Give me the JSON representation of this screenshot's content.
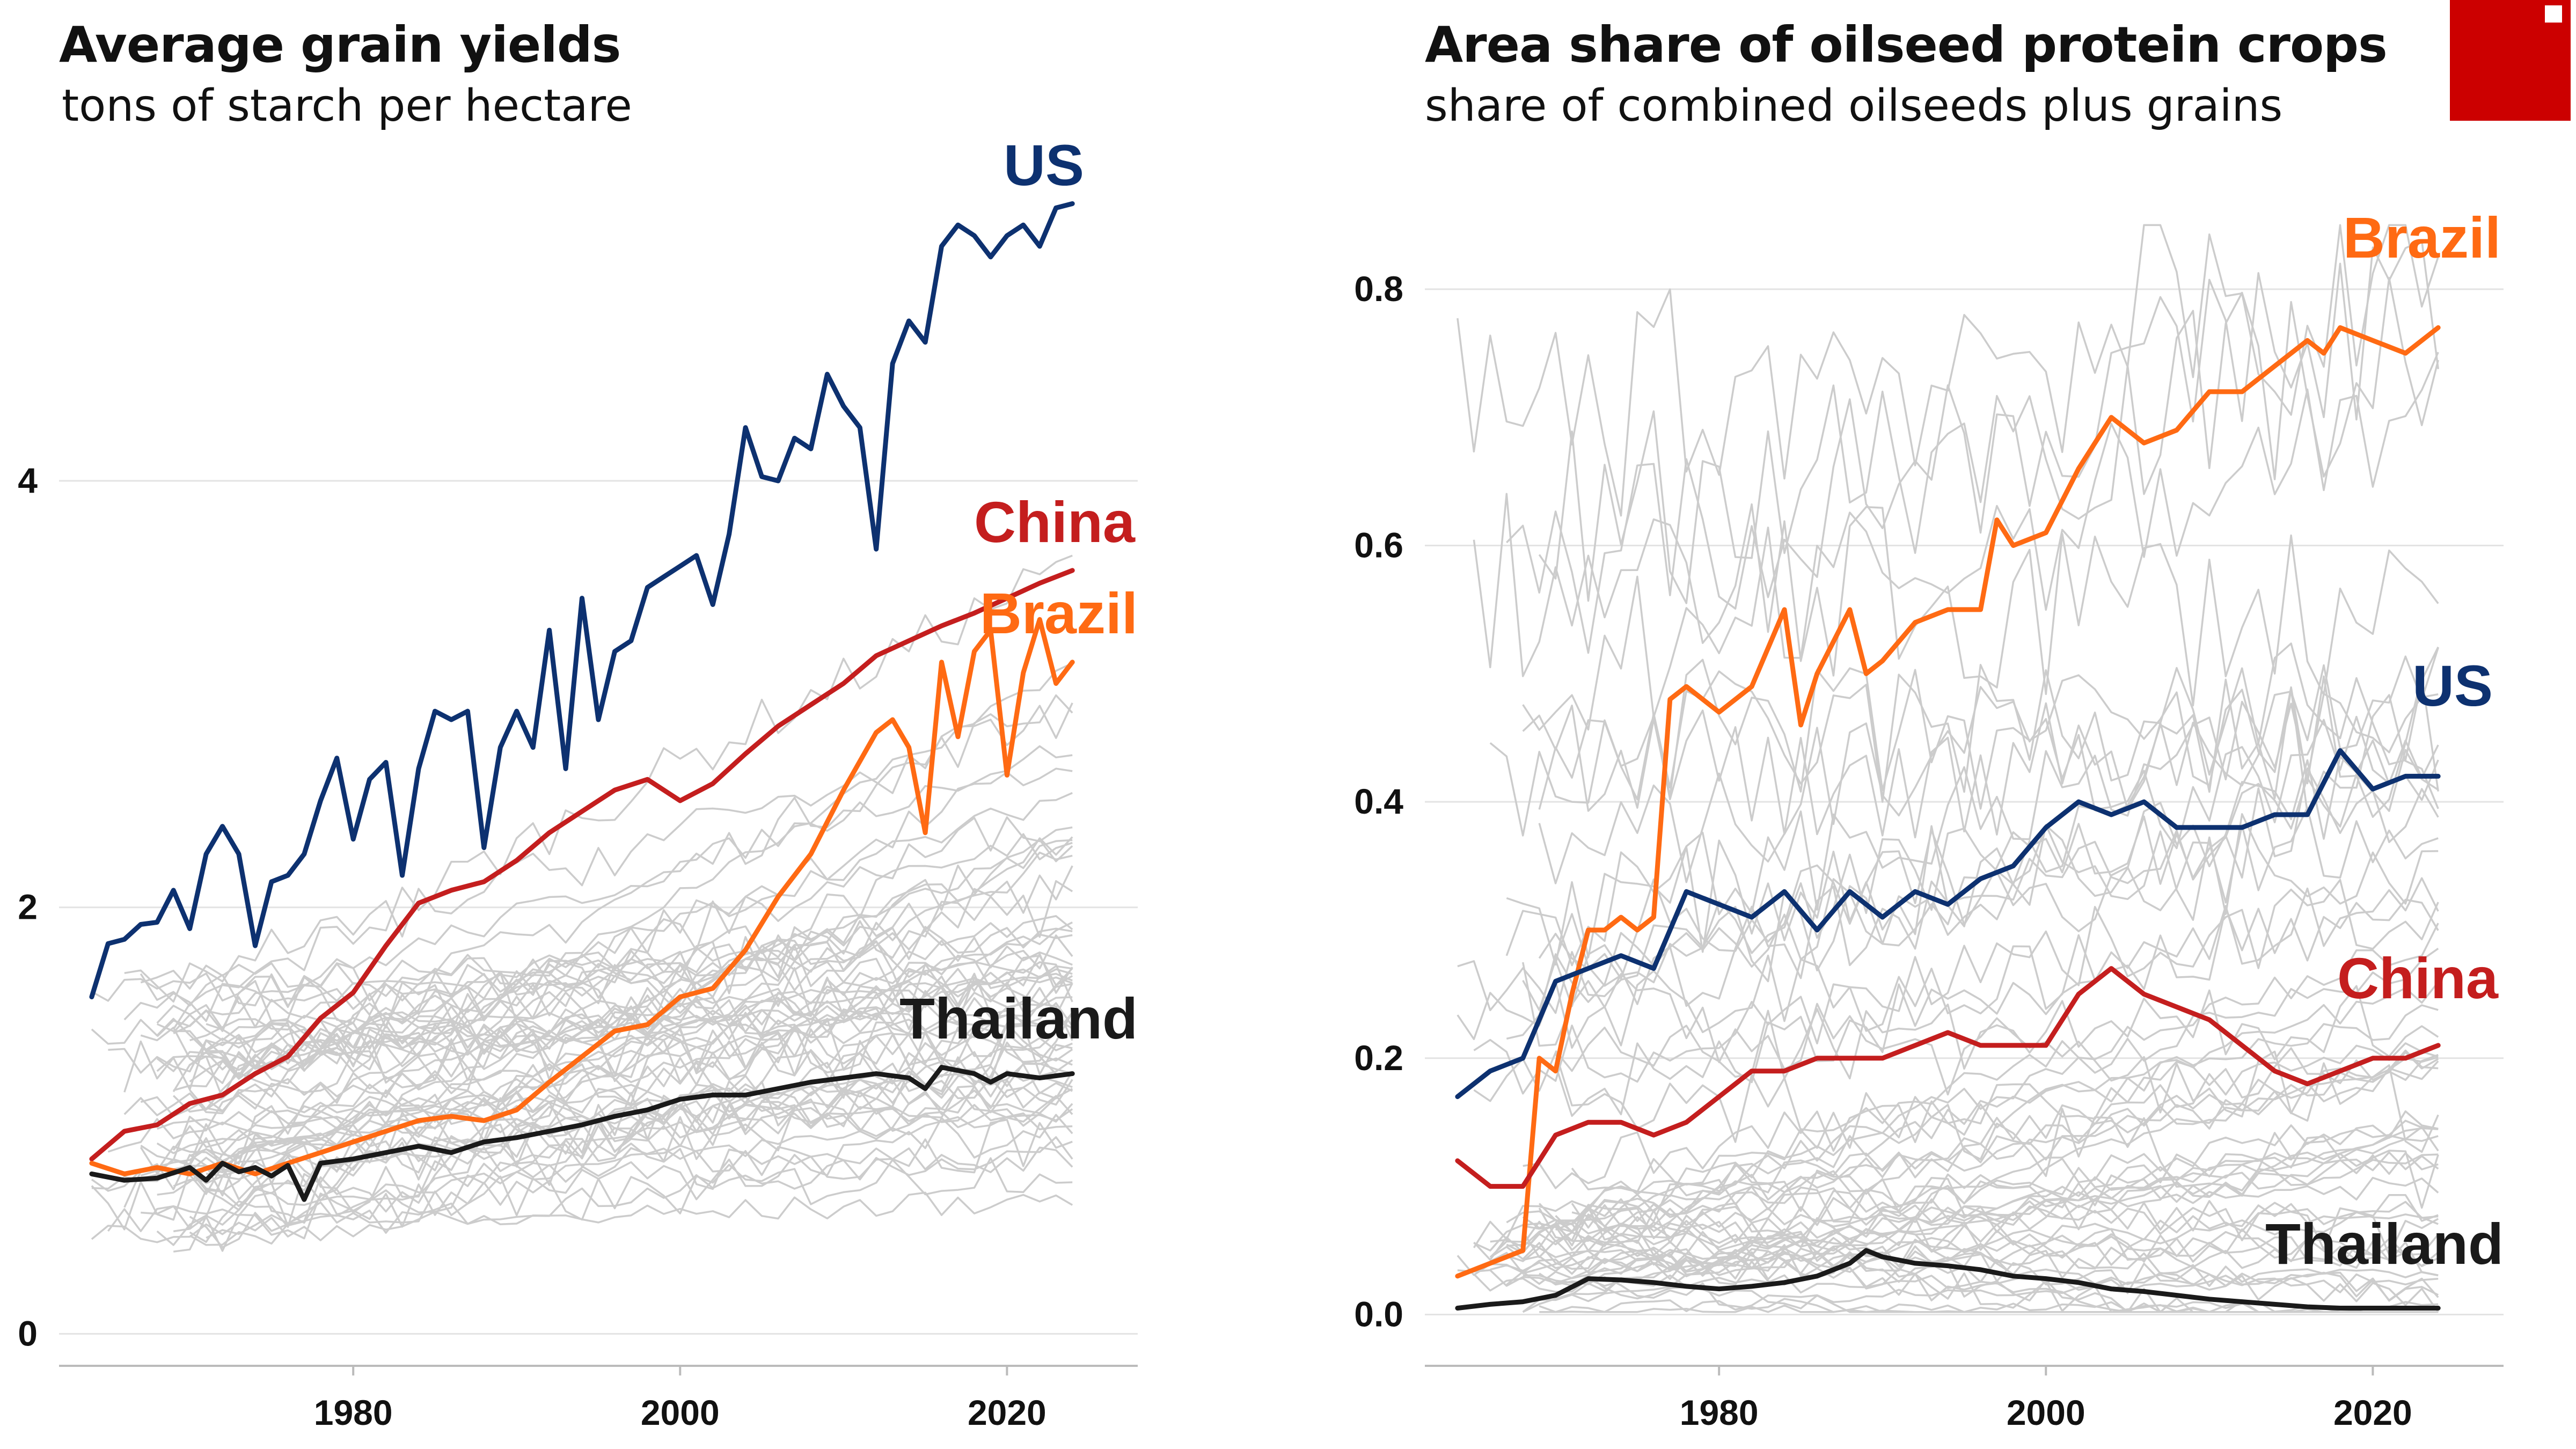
{
  "brand": {
    "color": "#cc0000",
    "icon": "brand-logo-icon"
  },
  "background_series_color": "#cccccc",
  "chart_data": [
    {
      "id": "yields",
      "type": "line",
      "title": "Average grain yields",
      "subtitle": "tons of starch per hectare",
      "xlabel": "",
      "ylabel": "",
      "xlim": [
        1962,
        2028
      ],
      "ylim": [
        -0.15,
        5.5
      ],
      "xticks": [
        1980,
        2000,
        2020
      ],
      "yticks": [
        0,
        2,
        4
      ],
      "ytick_labels": [
        "0",
        "2",
        "4"
      ],
      "grid": true,
      "background_note": "many light grey lines for other countries",
      "series": [
        {
          "name": "US",
          "color": "#0d3170",
          "x": [
            1964,
            1965,
            1966,
            1967,
            1968,
            1969,
            1970,
            1971,
            1972,
            1973,
            1974,
            1975,
            1976,
            1977,
            1978,
            1979,
            1980,
            1981,
            1982,
            1983,
            1984,
            1985,
            1986,
            1987,
            1988,
            1989,
            1990,
            1991,
            1992,
            1993,
            1994,
            1995,
            1996,
            1997,
            1998,
            1999,
            2000,
            2001,
            2002,
            2003,
            2004,
            2005,
            2006,
            2007,
            2008,
            2009,
            2010,
            2011,
            2012,
            2013,
            2014,
            2015,
            2016,
            2017,
            2018,
            2019,
            2020,
            2021,
            2022,
            2023,
            2024
          ],
          "values": [
            1.58,
            1.83,
            1.85,
            1.92,
            1.93,
            2.08,
            1.9,
            2.25,
            2.38,
            2.25,
            1.82,
            2.12,
            2.15,
            2.25,
            2.5,
            2.7,
            2.32,
            2.6,
            2.68,
            2.15,
            2.65,
            2.92,
            2.88,
            2.92,
            2.28,
            2.75,
            2.92,
            2.75,
            3.3,
            2.65,
            3.45,
            2.88,
            3.2,
            3.25,
            3.5,
            3.55,
            3.6,
            3.65,
            3.42,
            3.75,
            4.25,
            4.02,
            4.0,
            4.2,
            4.15,
            4.5,
            4.35,
            4.25,
            3.68,
            4.55,
            4.75,
            4.65,
            5.1,
            5.2,
            5.15,
            5.05,
            5.15,
            5.2,
            5.1,
            5.28,
            5.3
          ]
        },
        {
          "name": "China",
          "color": "#c41e1e",
          "x": [
            1964,
            1966,
            1968,
            1970,
            1972,
            1974,
            1976,
            1978,
            1980,
            1982,
            1984,
            1986,
            1988,
            1990,
            1992,
            1994,
            1996,
            1998,
            2000,
            2002,
            2004,
            2006,
            2008,
            2010,
            2012,
            2014,
            2016,
            2018,
            2020,
            2022,
            2024
          ],
          "values": [
            0.82,
            0.95,
            0.98,
            1.08,
            1.12,
            1.22,
            1.3,
            1.48,
            1.6,
            1.82,
            2.02,
            2.08,
            2.12,
            2.22,
            2.35,
            2.45,
            2.55,
            2.6,
            2.5,
            2.58,
            2.72,
            2.85,
            2.95,
            3.05,
            3.18,
            3.25,
            3.32,
            3.38,
            3.45,
            3.52,
            3.58
          ]
        },
        {
          "name": "Brazil",
          "color": "#ff6a13",
          "x": [
            1964,
            1966,
            1968,
            1970,
            1972,
            1974,
            1976,
            1978,
            1980,
            1982,
            1984,
            1986,
            1988,
            1990,
            1992,
            1994,
            1996,
            1998,
            2000,
            2002,
            2004,
            2006,
            2008,
            2010,
            2012,
            2013,
            2014,
            2015,
            2016,
            2017,
            2018,
            2019,
            2020,
            2021,
            2022,
            2023,
            2024
          ],
          "values": [
            0.8,
            0.75,
            0.78,
            0.75,
            0.8,
            0.75,
            0.8,
            0.85,
            0.9,
            0.95,
            1.0,
            1.02,
            1.0,
            1.05,
            1.18,
            1.3,
            1.42,
            1.45,
            1.58,
            1.62,
            1.8,
            2.05,
            2.25,
            2.55,
            2.82,
            2.88,
            2.75,
            2.35,
            3.15,
            2.8,
            3.2,
            3.3,
            2.62,
            3.1,
            3.35,
            3.05,
            3.15
          ]
        },
        {
          "name": "Thailand",
          "color": "#1a1a1a",
          "x": [
            1964,
            1966,
            1968,
            1970,
            1971,
            1972,
            1973,
            1974,
            1975,
            1976,
            1977,
            1978,
            1980,
            1982,
            1984,
            1986,
            1988,
            1990,
            1992,
            1994,
            1996,
            1998,
            2000,
            2002,
            2004,
            2006,
            2008,
            2010,
            2012,
            2014,
            2015,
            2016,
            2018,
            2019,
            2020,
            2022,
            2024
          ],
          "values": [
            0.75,
            0.72,
            0.73,
            0.78,
            0.72,
            0.8,
            0.76,
            0.78,
            0.74,
            0.79,
            0.63,
            0.8,
            0.82,
            0.85,
            0.88,
            0.85,
            0.9,
            0.92,
            0.95,
            0.98,
            1.02,
            1.05,
            1.1,
            1.12,
            1.12,
            1.15,
            1.18,
            1.2,
            1.22,
            1.2,
            1.15,
            1.25,
            1.22,
            1.18,
            1.22,
            1.2,
            1.22
          ]
        }
      ]
    },
    {
      "id": "oilseed",
      "type": "line",
      "title": "Area share of oilseed protein crops",
      "subtitle": "share of combined oilseeds plus grains",
      "xlabel": "",
      "ylabel": "",
      "xlim": [
        1962,
        2028
      ],
      "ylim": [
        -0.04,
        0.9
      ],
      "xticks": [
        1980,
        2000,
        2020
      ],
      "yticks": [
        0.0,
        0.2,
        0.4,
        0.6,
        0.8
      ],
      "ytick_labels": [
        "0.0",
        "0.2",
        "0.4",
        "0.6",
        "0.8"
      ],
      "grid": true,
      "background_note": "many light grey lines for other countries",
      "series": [
        {
          "name": "Brazil",
          "color": "#ff6a13",
          "x": [
            1964,
            1966,
            1968,
            1969,
            1970,
            1971,
            1972,
            1973,
            1974,
            1975,
            1976,
            1977,
            1978,
            1980,
            1982,
            1984,
            1985,
            1986,
            1988,
            1989,
            1990,
            1992,
            1994,
            1996,
            1997,
            1998,
            2000,
            2002,
            2004,
            2005,
            2006,
            2008,
            2010,
            2012,
            2014,
            2016,
            2017,
            2018,
            2020,
            2022,
            2024
          ],
          "values": [
            0.03,
            0.04,
            0.05,
            0.2,
            0.19,
            0.25,
            0.3,
            0.3,
            0.31,
            0.3,
            0.31,
            0.48,
            0.49,
            0.47,
            0.49,
            0.55,
            0.46,
            0.5,
            0.55,
            0.5,
            0.51,
            0.54,
            0.55,
            0.55,
            0.62,
            0.6,
            0.61,
            0.66,
            0.7,
            0.69,
            0.68,
            0.69,
            0.72,
            0.72,
            0.74,
            0.76,
            0.75,
            0.77,
            0.76,
            0.75,
            0.77
          ]
        },
        {
          "name": "US",
          "color": "#0d3170",
          "x": [
            1964,
            1966,
            1968,
            1970,
            1972,
            1974,
            1976,
            1978,
            1980,
            1982,
            1984,
            1986,
            1988,
            1990,
            1992,
            1994,
            1996,
            1998,
            2000,
            2002,
            2004,
            2006,
            2008,
            2010,
            2012,
            2014,
            2016,
            2018,
            2020,
            2022,
            2024
          ],
          "values": [
            0.17,
            0.19,
            0.2,
            0.26,
            0.27,
            0.28,
            0.27,
            0.33,
            0.32,
            0.31,
            0.33,
            0.3,
            0.33,
            0.31,
            0.33,
            0.32,
            0.34,
            0.35,
            0.38,
            0.4,
            0.39,
            0.4,
            0.38,
            0.38,
            0.38,
            0.39,
            0.39,
            0.44,
            0.41,
            0.42,
            0.42
          ]
        },
        {
          "name": "China",
          "color": "#c41e1e",
          "x": [
            1964,
            1966,
            1968,
            1970,
            1972,
            1974,
            1976,
            1978,
            1980,
            1982,
            1984,
            1986,
            1988,
            1990,
            1992,
            1994,
            1996,
            1998,
            2000,
            2002,
            2004,
            2006,
            2008,
            2010,
            2012,
            2014,
            2016,
            2018,
            2020,
            2022,
            2024
          ],
          "values": [
            0.12,
            0.1,
            0.1,
            0.14,
            0.15,
            0.15,
            0.14,
            0.15,
            0.17,
            0.19,
            0.19,
            0.2,
            0.2,
            0.2,
            0.21,
            0.22,
            0.21,
            0.21,
            0.21,
            0.25,
            0.27,
            0.25,
            0.24,
            0.23,
            0.21,
            0.19,
            0.18,
            0.19,
            0.2,
            0.2,
            0.21
          ]
        },
        {
          "name": "Thailand",
          "color": "#1a1a1a",
          "x": [
            1964,
            1966,
            1968,
            1970,
            1972,
            1974,
            1976,
            1978,
            1980,
            1982,
            1984,
            1986,
            1988,
            1989,
            1990,
            1992,
            1994,
            1996,
            1998,
            2000,
            2002,
            2004,
            2006,
            2008,
            2010,
            2012,
            2014,
            2016,
            2018,
            2020,
            2022,
            2024
          ],
          "values": [
            0.005,
            0.008,
            0.01,
            0.015,
            0.028,
            0.027,
            0.025,
            0.022,
            0.02,
            0.022,
            0.025,
            0.03,
            0.04,
            0.05,
            0.045,
            0.04,
            0.038,
            0.035,
            0.03,
            0.028,
            0.025,
            0.02,
            0.018,
            0.015,
            0.012,
            0.01,
            0.008,
            0.006,
            0.005,
            0.005,
            0.005,
            0.005
          ]
        }
      ]
    }
  ]
}
